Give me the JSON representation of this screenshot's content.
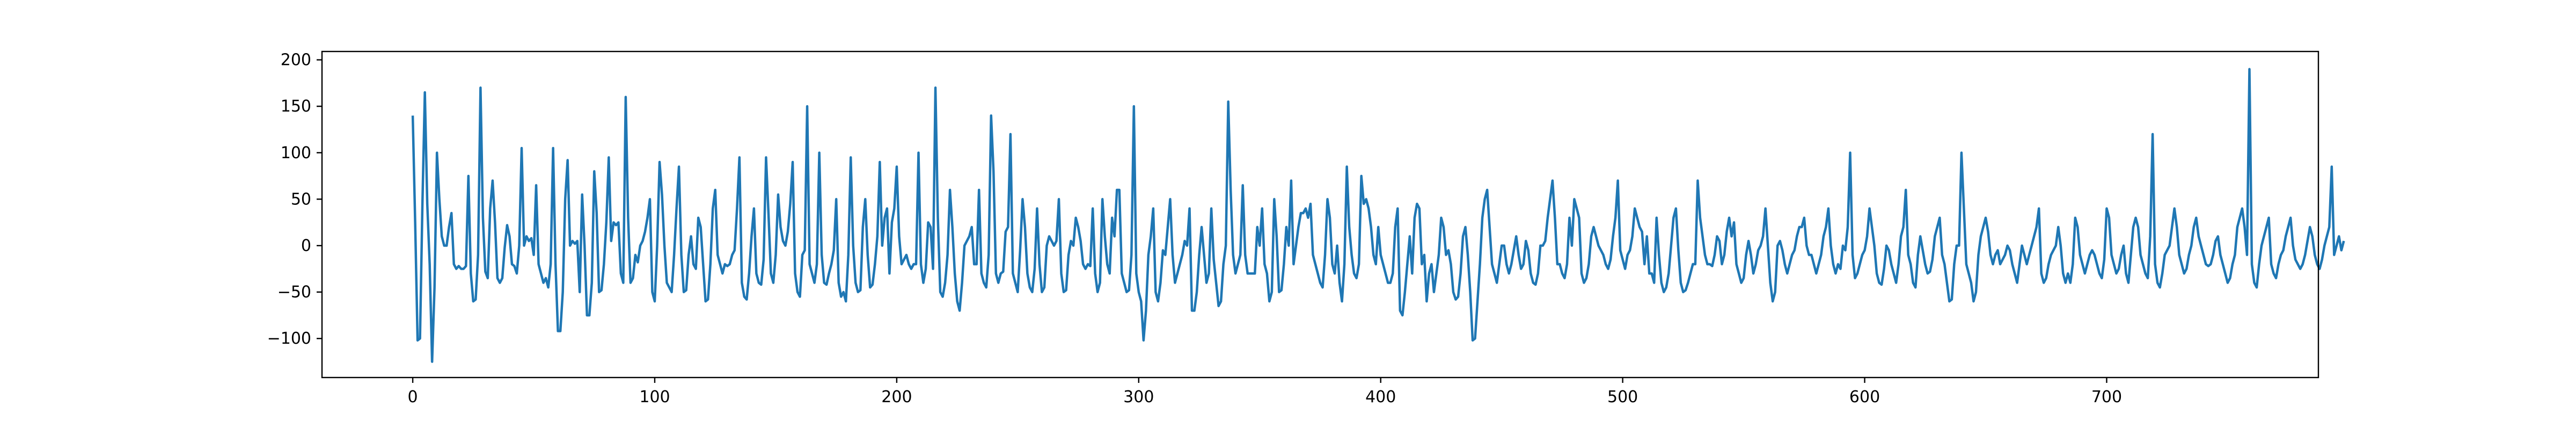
{
  "chart_data": {
    "type": "line",
    "title": "",
    "xlabel": "",
    "ylabel": "",
    "xlim": [
      -37.5,
      787.5
    ],
    "ylim": [
      -142,
      209
    ],
    "xticks": [
      0,
      100,
      200,
      300,
      400,
      500,
      600,
      700
    ],
    "yticks": [
      -100,
      -50,
      0,
      50,
      100,
      150,
      200
    ],
    "grid": false,
    "legend": "none",
    "series": [
      {
        "color": "#1f77b4",
        "x_start": 0,
        "x_step": 1,
        "values": [
          140,
          25,
          -102,
          -100,
          45,
          165,
          45,
          -20,
          -125,
          -45,
          100,
          50,
          10,
          0,
          0,
          20,
          35,
          -20,
          -25,
          -22,
          -25,
          -25,
          -22,
          75,
          -30,
          -60,
          -58,
          -10,
          170,
          30,
          -28,
          -35,
          40,
          70,
          25,
          -35,
          -40,
          -35,
          -2,
          22,
          10,
          -20,
          -22,
          -30,
          0,
          105,
          0,
          10,
          5,
          8,
          -10,
          65,
          -20,
          -30,
          -40,
          -35,
          -45,
          -20,
          105,
          -20,
          -92,
          -92,
          -50,
          50,
          92,
          0,
          5,
          2,
          5,
          -50,
          55,
          0,
          -75,
          -75,
          -40,
          80,
          35,
          -50,
          -48,
          -20,
          25,
          95,
          5,
          25,
          22,
          25,
          -30,
          -40,
          160,
          30,
          -40,
          -35,
          -10,
          -18,
          0,
          5,
          15,
          30,
          50,
          -50,
          -60,
          0,
          90,
          55,
          0,
          -40,
          -45,
          -50,
          -10,
          40,
          85,
          -10,
          -50,
          -48,
          -10,
          10,
          -20,
          -25,
          30,
          20,
          -20,
          -60,
          -58,
          -20,
          40,
          60,
          -10,
          -20,
          -30,
          -20,
          -22,
          -20,
          -10,
          -5,
          40,
          95,
          -40,
          -55,
          -58,
          -30,
          10,
          40,
          -30,
          -40,
          -42,
          -15,
          95,
          35,
          -30,
          -40,
          -10,
          55,
          20,
          5,
          0,
          15,
          45,
          90,
          -30,
          -50,
          -55,
          -10,
          -5,
          150,
          -20,
          -30,
          -40,
          -20,
          100,
          -10,
          -40,
          -42,
          -30,
          -20,
          -5,
          50,
          -40,
          -55,
          -50,
          -60,
          -10,
          95,
          0,
          -40,
          -50,
          -48,
          20,
          50,
          -10,
          -45,
          -42,
          -20,
          10,
          90,
          0,
          30,
          40,
          -30,
          25,
          40,
          85,
          10,
          -20,
          -15,
          -10,
          -20,
          -25,
          -20,
          -20,
          100,
          -20,
          -40,
          -25,
          25,
          20,
          -25,
          170,
          30,
          -50,
          -55,
          -40,
          -10,
          60,
          20,
          -30,
          -60,
          -70,
          -40,
          0,
          5,
          10,
          20,
          -20,
          -20,
          60,
          -30,
          -40,
          -45,
          -10,
          140,
          80,
          -30,
          -40,
          -30,
          -28,
          15,
          20,
          120,
          -30,
          -40,
          -50,
          -5,
          50,
          20,
          -30,
          -45,
          -50,
          -25,
          40,
          -20,
          -50,
          -45,
          0,
          10,
          5,
          0,
          5,
          50,
          -30,
          -50,
          -48,
          -10,
          5,
          0,
          30,
          20,
          5,
          -20,
          -25,
          -20,
          -22,
          40,
          -30,
          -50,
          -40,
          50,
          10,
          -20,
          -30,
          30,
          10,
          60,
          60,
          -30,
          -40,
          -50,
          -48,
          -10,
          150,
          -30,
          -50,
          -60,
          -102,
          -70,
          -10,
          10,
          40,
          -50,
          -60,
          -40,
          -5,
          -10,
          20,
          50,
          -10,
          -40,
          -30,
          -20,
          -10,
          5,
          0,
          40,
          -70,
          -70,
          -50,
          -10,
          20,
          -10,
          -40,
          -30,
          40,
          -15,
          -40,
          -65,
          -60,
          -20,
          0,
          155,
          60,
          -10,
          -30,
          -20,
          -10,
          65,
          -10,
          -30,
          -30,
          -30,
          -30,
          20,
          0,
          40,
          -20,
          -30,
          -60,
          -50,
          50,
          10,
          -50,
          -48,
          -20,
          20,
          0,
          70,
          -20,
          0,
          20,
          35,
          35,
          40,
          30,
          45,
          -10,
          -20,
          -30,
          -40,
          -45,
          -10,
          50,
          30,
          -20,
          -30,
          0,
          -40,
          -60,
          -20,
          85,
          20,
          -10,
          -30,
          -35,
          -20,
          75,
          45,
          50,
          40,
          20,
          -10,
          -20,
          20,
          -10,
          -20,
          -30,
          -40,
          -40,
          -30,
          20,
          40,
          -70,
          -75,
          -50,
          -20,
          10,
          -30,
          30,
          45,
          40,
          -20,
          -10,
          -60,
          -30,
          -20,
          -50,
          -30,
          -10,
          30,
          20,
          -10,
          -5,
          -20,
          -50,
          -58,
          -55,
          -30,
          10,
          20,
          -10,
          -50,
          -102,
          -100,
          -60,
          -20,
          30,
          50,
          60,
          20,
          -20,
          -30,
          -40,
          -20,
          0,
          0,
          -20,
          -30,
          -20,
          -5,
          10,
          -10,
          -25,
          -20,
          5,
          -5,
          -30,
          -40,
          -42,
          -30,
          0,
          0,
          5,
          30,
          50,
          70,
          30,
          -20,
          -20,
          -30,
          -35,
          -20,
          30,
          0,
          50,
          40,
          30,
          -30,
          -40,
          -35,
          -20,
          10,
          20,
          10,
          0,
          -5,
          -10,
          -20,
          -25,
          -15,
          10,
          30,
          70,
          -5,
          -15,
          -25,
          -10,
          -5,
          10,
          40,
          30,
          20,
          15,
          -20,
          10,
          -30,
          -30,
          -40,
          30,
          -10,
          -40,
          -50,
          -45,
          -30,
          0,
          30,
          40,
          -5,
          -40,
          -50,
          -48,
          -40,
          -30,
          -20,
          -20,
          70,
          30,
          10,
          -10,
          -20,
          -20,
          -22,
          -10,
          10,
          5,
          -20,
          -10,
          15,
          30,
          10,
          25,
          -20,
          -30,
          -40,
          -35,
          -10,
          5,
          -10,
          -30,
          -20,
          -5,
          0,
          10,
          40,
          0,
          -40,
          -60,
          -50,
          0,
          5,
          -5,
          -20,
          -30,
          -20,
          -10,
          -5,
          10,
          20,
          20,
          30,
          0,
          -10,
          -10,
          -20,
          -30,
          -20,
          -10,
          10,
          20,
          40,
          0,
          -20,
          -30,
          -20,
          -25,
          0,
          -5,
          20,
          100,
          -10,
          -35,
          -30,
          -20,
          -10,
          -5,
          10,
          40,
          20,
          0,
          -30,
          -40,
          -42,
          -25,
          0,
          -5,
          -20,
          -30,
          -40,
          -20,
          10,
          20,
          60,
          -10,
          -20,
          -40,
          -45,
          -10,
          10,
          -5,
          -20,
          -30,
          -28,
          -15,
          10,
          20,
          30,
          -10,
          -20,
          -40,
          -60,
          -58,
          -20,
          0,
          0,
          100,
          40,
          -20,
          -30,
          -40,
          -60,
          -50,
          -10,
          10,
          20,
          30,
          15,
          -10,
          -20,
          -10,
          -5,
          -20,
          -15,
          -10,
          0,
          -5,
          -20,
          -30,
          -40,
          -20,
          0,
          -10,
          -20,
          -10,
          0,
          10,
          20,
          40,
          -30,
          -40,
          -35,
          -20,
          -10,
          -5,
          0,
          20,
          0,
          -30,
          -40,
          -30,
          -40,
          -20,
          30,
          20,
          -10,
          -20,
          -30,
          -20,
          -10,
          -5,
          -10,
          -20,
          -30,
          -35,
          -15,
          40,
          30,
          -10,
          -20,
          -30,
          -25,
          -10,
          0,
          -30,
          -40,
          -10,
          20,
          30,
          20,
          -10,
          -20,
          -30,
          -35,
          10,
          120,
          -20,
          -40,
          -45,
          -30,
          -10,
          -5,
          0,
          20,
          40,
          20,
          -10,
          -20,
          -30,
          -25,
          -10,
          0,
          20,
          30,
          10,
          0,
          -10,
          -20,
          -22,
          -20,
          -10,
          5,
          10,
          -10,
          -20,
          -30,
          -40,
          -35,
          -20,
          -10,
          20,
          30,
          40,
          20,
          -10,
          190,
          -20,
          -40,
          -45,
          -20,
          0,
          10,
          20,
          30,
          -20,
          -30,
          -35,
          -20,
          -10,
          -5,
          10,
          20,
          30,
          0,
          -15,
          -20,
          -25,
          -20,
          -10,
          5,
          20,
          10,
          -10,
          -20,
          -25,
          -15,
          0,
          10,
          20,
          85,
          -10,
          0,
          10,
          -5,
          5
        ]
      }
    ]
  }
}
